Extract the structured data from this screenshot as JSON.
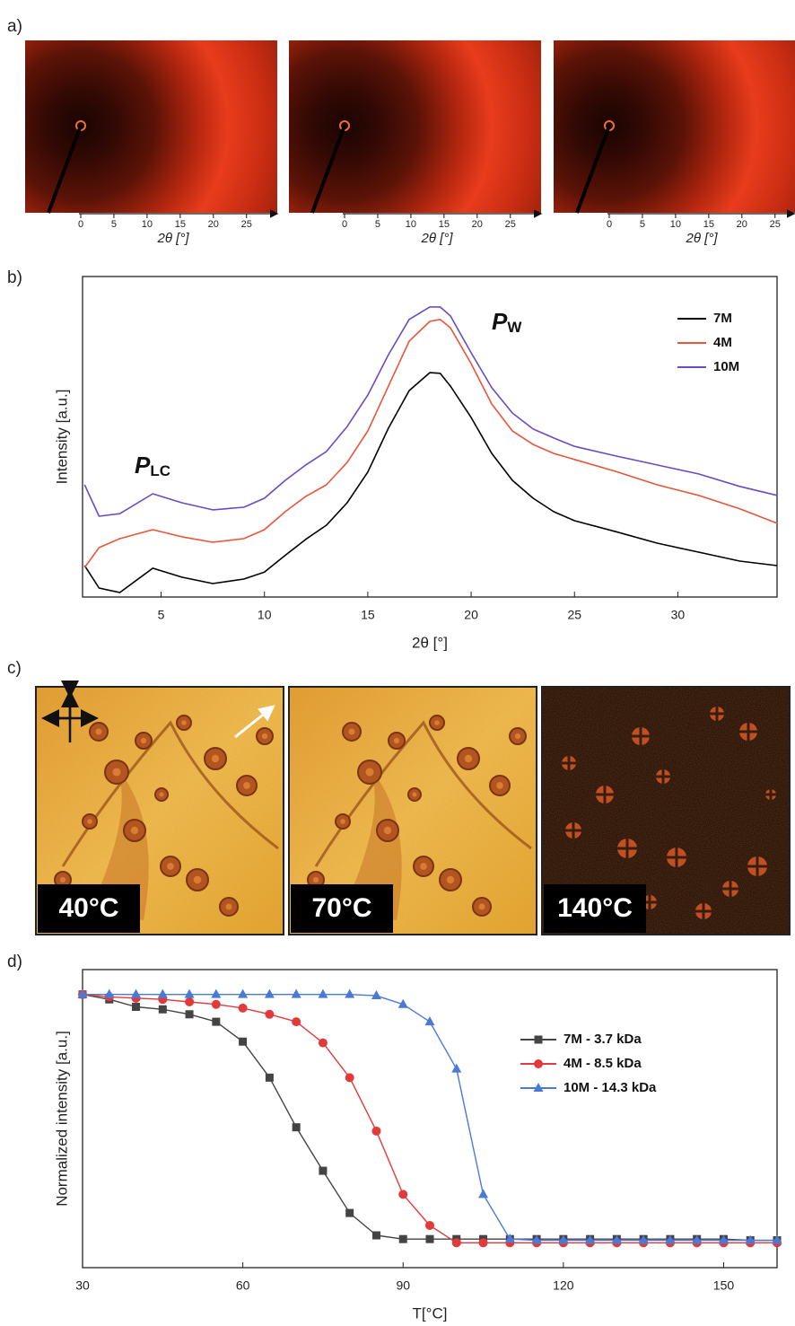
{
  "panel_a": {
    "label": "a)",
    "xlabel": "2θ [°]",
    "xlim": [
      0,
      29.5
    ],
    "xticks": [
      0,
      5,
      10,
      15,
      20,
      25
    ]
  },
  "panel_c": {
    "label": "c)",
    "captions": [
      "40°C",
      "70°C",
      "140°C"
    ]
  },
  "chart_data": [
    {
      "type": "line",
      "label": "b)",
      "xlabel": "2θ [°]",
      "ylabel": "Intensity [a.u.]",
      "xlim": [
        1.2,
        34.8
      ],
      "xticks": [
        5,
        10,
        15,
        20,
        25,
        30
      ],
      "ylim": [
        0,
        100
      ],
      "legend": "upper right",
      "markers": false,
      "annotations": [
        {
          "text": "P",
          "subscript": "LC"
        },
        {
          "text": "P",
          "subscript": "W"
        }
      ],
      "x": [
        1.3,
        2,
        3,
        4.6,
        6,
        7.5,
        9,
        10,
        11,
        12,
        13,
        14,
        15,
        16,
        17,
        18,
        18.5,
        19,
        20,
        21,
        22,
        23,
        24,
        25,
        27,
        29,
        31,
        33,
        34.8
      ],
      "series": [
        {
          "name": "7M",
          "color": "#000000",
          "values": [
            9.8,
            2.8,
            1.4,
            9,
            6.2,
            4.2,
            5.6,
            7.8,
            13,
            18,
            22.4,
            29.4,
            39,
            52.7,
            64.4,
            70,
            69.8,
            65.8,
            56,
            44.8,
            36.4,
            30.8,
            26.6,
            23.8,
            20.4,
            16.8,
            14,
            11.2,
            9.8
          ]
        },
        {
          "name": "4M",
          "color": "#e8553a",
          "values": [
            9.2,
            15.4,
            18.2,
            21,
            18.8,
            17.1,
            18.2,
            21,
            26.6,
            31.4,
            35,
            42,
            51.8,
            65.8,
            79.8,
            86,
            86.6,
            84,
            72.8,
            60.2,
            51.8,
            47.6,
            44.8,
            42.9,
            39.2,
            35,
            31.7,
            27.5,
            23
          ]
        },
        {
          "name": "10M",
          "color": "#6a4bc4",
          "values": [
            35,
            25.2,
            26,
            32.2,
            29.4,
            27.2,
            28,
            30.8,
            36.4,
            41.2,
            45.4,
            53.2,
            63,
            75.6,
            86.6,
            90.5,
            90.5,
            87.7,
            76.2,
            65.3,
            57.4,
            52.4,
            49.6,
            47,
            44,
            41.2,
            38.4,
            34.5,
            31.7
          ]
        }
      ]
    },
    {
      "type": "line",
      "label": "d)",
      "xlabel": "T[°C]",
      "ylabel": "Normalized intensity [a.u.]",
      "xlim": [
        30,
        160
      ],
      "xticks": [
        30,
        60,
        90,
        120,
        150
      ],
      "ylim": [
        -0.1,
        1.1
      ],
      "legend": "upper right",
      "markers": true,
      "x": [
        30,
        35,
        40,
        45,
        50,
        55,
        60,
        65,
        70,
        75,
        80,
        85,
        90,
        95,
        100,
        105,
        110,
        115,
        120,
        125,
        130,
        135,
        140,
        145,
        150,
        155,
        160
      ],
      "series": [
        {
          "name": "7M - 3.7 kDa",
          "color": "#444444",
          "marker": "square",
          "values": [
            1.0,
            0.98,
            0.95,
            0.94,
            0.92,
            0.89,
            0.81,
            0.665,
            0.465,
            0.29,
            0.12,
            0.03,
            0.015,
            0.015,
            0.015,
            0.015,
            0.015,
            0.015,
            0.015,
            0.015,
            0.015,
            0.015,
            0.015,
            0.015,
            0.015,
            0.01,
            0.01
          ]
        },
        {
          "name": "4M - 8.5 kDa",
          "color": "#e23a3a",
          "marker": "circle",
          "values": [
            1.0,
            0.99,
            0.985,
            0.98,
            0.97,
            0.96,
            0.945,
            0.92,
            0.89,
            0.805,
            0.665,
            0.45,
            0.195,
            0.07,
            0.0,
            0.0,
            0.0,
            0.0,
            0.0,
            0.0,
            0.0,
            0.0,
            0.0,
            0.0,
            0.0,
            0.0,
            0.0
          ]
        },
        {
          "name": "10M - 14.3 kDa",
          "color": "#4a7ad8",
          "marker": "triangle",
          "values": [
            1.0,
            1.0,
            1.0,
            1.0,
            1.0,
            1.0,
            1.0,
            1.0,
            1.0,
            1.0,
            1.0,
            0.995,
            0.96,
            0.89,
            0.7,
            0.195,
            0.015,
            0.01,
            0.01,
            0.01,
            0.01,
            0.01,
            0.01,
            0.01,
            0.01,
            0.01,
            0.01
          ]
        }
      ]
    }
  ]
}
